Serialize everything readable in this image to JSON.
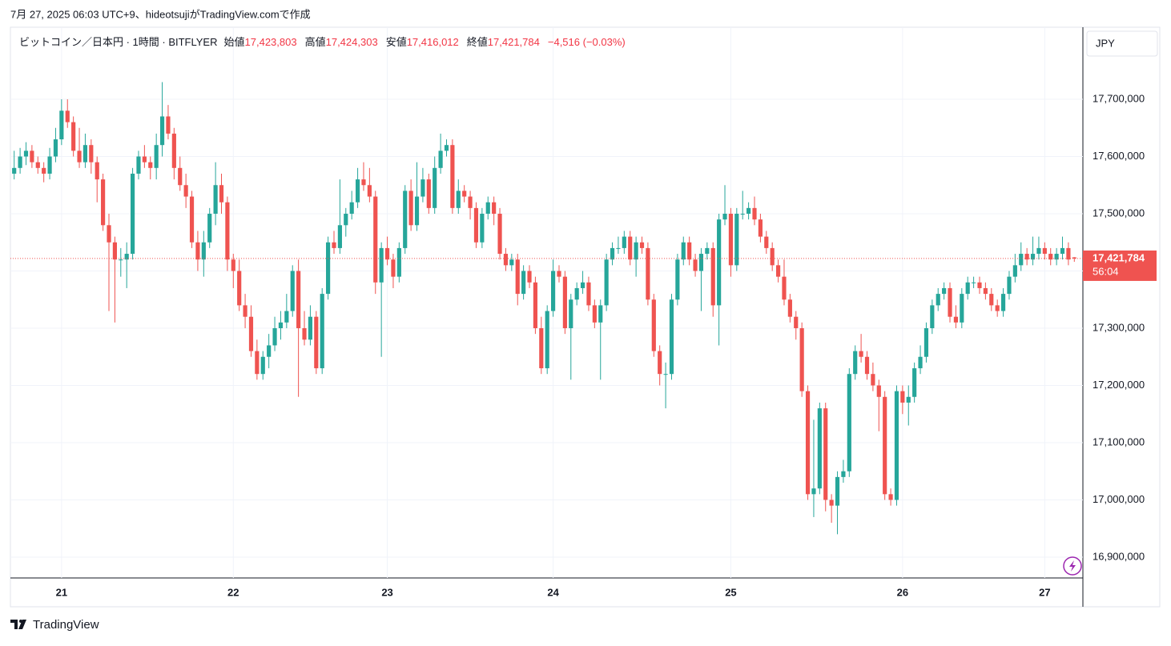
{
  "header": {
    "caption": "7月 27, 2025 06:03 UTC+9、hideotsujiがTradingView.comで作成",
    "logo": "TradingView"
  },
  "chart_data": {
    "type": "candlestick",
    "title": "ビットコイン／日本円 · 1時間 · BITFLYER",
    "legend_fields": [
      {
        "name": "始値",
        "text": "17,423,803"
      },
      {
        "name": "高値",
        "text": "17,424,303"
      },
      {
        "name": "安値",
        "text": "17,416,012"
      },
      {
        "name": "終値",
        "text": "17,421,784"
      }
    ],
    "change": "−4,516 (−0.03%)",
    "currency": "JPY",
    "last_price": {
      "value": 17421784,
      "label": "17,421,784"
    },
    "countdown": "56:04",
    "up_color": "#26a69a",
    "down_color": "#ef5350",
    "grid": true,
    "ylim": [
      16863600,
      17825900
    ],
    "yticks": [
      {
        "value": 16900000,
        "label": "16,900,000"
      },
      {
        "value": 17000000,
        "label": "17,000,000"
      },
      {
        "value": 17100000,
        "label": "17,100,000"
      },
      {
        "value": 17200000,
        "label": "17,200,000"
      },
      {
        "value": 17300000,
        "label": "17,300,000"
      },
      {
        "value": 17400000,
        "label": "17,400,000"
      },
      {
        "value": 17500000,
        "label": "17,500,000"
      },
      {
        "value": 17600000,
        "label": "17,600,000"
      },
      {
        "value": 17700000,
        "label": "17,700,000"
      }
    ],
    "categories": [
      null,
      null,
      null,
      null,
      null,
      null,
      null,
      null,
      "21",
      null,
      null,
      null,
      null,
      null,
      null,
      null,
      null,
      null,
      null,
      null,
      null,
      null,
      null,
      null,
      null,
      null,
      null,
      null,
      null,
      null,
      null,
      null,
      null,
      null,
      null,
      null,
      null,
      "22",
      null,
      null,
      null,
      null,
      null,
      null,
      null,
      null,
      null,
      null,
      null,
      null,
      null,
      null,
      null,
      null,
      null,
      null,
      null,
      null,
      null,
      null,
      null,
      null,
      null,
      "23",
      null,
      null,
      null,
      null,
      null,
      null,
      null,
      null,
      null,
      null,
      null,
      null,
      null,
      null,
      null,
      null,
      null,
      null,
      null,
      null,
      null,
      null,
      null,
      null,
      null,
      null,
      null,
      "24",
      null,
      null,
      null,
      null,
      null,
      null,
      null,
      null,
      null,
      null,
      null,
      null,
      null,
      null,
      null,
      null,
      null,
      null,
      null,
      null,
      null,
      null,
      null,
      null,
      null,
      null,
      null,
      null,
      null,
      "25",
      null,
      null,
      null,
      null,
      null,
      null,
      null,
      null,
      null,
      null,
      null,
      null,
      null,
      null,
      null,
      null,
      null,
      null,
      null,
      null,
      null,
      null,
      null,
      null,
      null,
      null,
      null,
      null,
      "26",
      null,
      null,
      null,
      null,
      null,
      null,
      null,
      null,
      null,
      null,
      null,
      null,
      null,
      null,
      null,
      null,
      null,
      null,
      null,
      null,
      null,
      null,
      null,
      "27",
      null,
      null,
      null,
      null,
      null,
      null
    ],
    "ohlc": [
      [
        17570000,
        17610000,
        17560000,
        17580000
      ],
      [
        17580000,
        17615000,
        17570000,
        17600000
      ],
      [
        17600000,
        17625000,
        17585000,
        17610000
      ],
      [
        17610000,
        17620000,
        17580000,
        17590000
      ],
      [
        17590000,
        17600000,
        17570000,
        17580000
      ],
      [
        17580000,
        17590000,
        17555000,
        17570000
      ],
      [
        17570000,
        17615000,
        17560000,
        17600000
      ],
      [
        17600000,
        17650000,
        17590000,
        17630000
      ],
      [
        17630000,
        17700000,
        17620000,
        17680000
      ],
      [
        17680000,
        17700000,
        17650000,
        17660000
      ],
      [
        17660000,
        17670000,
        17600000,
        17610000
      ],
      [
        17610000,
        17650000,
        17580000,
        17590000
      ],
      [
        17590000,
        17640000,
        17580000,
        17620000
      ],
      [
        17620000,
        17630000,
        17570000,
        17590000
      ],
      [
        17590000,
        17600000,
        17520000,
        17560000
      ],
      [
        17560000,
        17570000,
        17470000,
        17480000
      ],
      [
        17480000,
        17500000,
        17330000,
        17450000
      ],
      [
        17450000,
        17460000,
        17310000,
        17420000
      ],
      [
        17420000,
        17440000,
        17390000,
        17420000
      ],
      [
        17420000,
        17450000,
        17370000,
        17430000
      ],
      [
        17430000,
        17580000,
        17420000,
        17570000
      ],
      [
        17570000,
        17610000,
        17560000,
        17600000
      ],
      [
        17600000,
        17620000,
        17580000,
        17590000
      ],
      [
        17590000,
        17600000,
        17560000,
        17580000
      ],
      [
        17580000,
        17640000,
        17560000,
        17620000
      ],
      [
        17620000,
        17730000,
        17600000,
        17670000
      ],
      [
        17670000,
        17690000,
        17630000,
        17640000
      ],
      [
        17640000,
        17650000,
        17560000,
        17580000
      ],
      [
        17580000,
        17600000,
        17540000,
        17550000
      ],
      [
        17550000,
        17570000,
        17510000,
        17530000
      ],
      [
        17530000,
        17540000,
        17440000,
        17450000
      ],
      [
        17450000,
        17470000,
        17400000,
        17420000
      ],
      [
        17420000,
        17470000,
        17390000,
        17450000
      ],
      [
        17450000,
        17510000,
        17440000,
        17500000
      ],
      [
        17500000,
        17590000,
        17480000,
        17550000
      ],
      [
        17550000,
        17570000,
        17500000,
        17520000
      ],
      [
        17520000,
        17530000,
        17400000,
        17420000
      ],
      [
        17420000,
        17430000,
        17370000,
        17400000
      ],
      [
        17400000,
        17420000,
        17330000,
        17340000
      ],
      [
        17340000,
        17360000,
        17300000,
        17320000
      ],
      [
        17320000,
        17340000,
        17250000,
        17260000
      ],
      [
        17260000,
        17280000,
        17210000,
        17220000
      ],
      [
        17220000,
        17260000,
        17210000,
        17250000
      ],
      [
        17250000,
        17290000,
        17230000,
        17270000
      ],
      [
        17270000,
        17320000,
        17260000,
        17300000
      ],
      [
        17300000,
        17330000,
        17280000,
        17310000
      ],
      [
        17310000,
        17360000,
        17300000,
        17330000
      ],
      [
        17330000,
        17410000,
        17320000,
        17400000
      ],
      [
        17400000,
        17420000,
        17180000,
        17300000
      ],
      [
        17300000,
        17330000,
        17270000,
        17280000
      ],
      [
        17280000,
        17340000,
        17270000,
        17320000
      ],
      [
        17320000,
        17330000,
        17220000,
        17230000
      ],
      [
        17230000,
        17370000,
        17220000,
        17360000
      ],
      [
        17360000,
        17460000,
        17350000,
        17450000
      ],
      [
        17450000,
        17470000,
        17430000,
        17440000
      ],
      [
        17440000,
        17560000,
        17430000,
        17480000
      ],
      [
        17480000,
        17510000,
        17460000,
        17500000
      ],
      [
        17500000,
        17540000,
        17490000,
        17520000
      ],
      [
        17520000,
        17580000,
        17510000,
        17560000
      ],
      [
        17560000,
        17590000,
        17540000,
        17550000
      ],
      [
        17550000,
        17580000,
        17520000,
        17530000
      ],
      [
        17530000,
        17540000,
        17360000,
        17380000
      ],
      [
        17380000,
        17450000,
        17250000,
        17440000
      ],
      [
        17440000,
        17460000,
        17410000,
        17420000
      ],
      [
        17420000,
        17430000,
        17370000,
        17390000
      ],
      [
        17390000,
        17450000,
        17380000,
        17440000
      ],
      [
        17440000,
        17550000,
        17430000,
        17540000
      ],
      [
        17540000,
        17560000,
        17470000,
        17480000
      ],
      [
        17480000,
        17590000,
        17470000,
        17530000
      ],
      [
        17530000,
        17580000,
        17520000,
        17560000
      ],
      [
        17560000,
        17570000,
        17500000,
        17510000
      ],
      [
        17510000,
        17600000,
        17500000,
        17580000
      ],
      [
        17580000,
        17640000,
        17570000,
        17610000
      ],
      [
        17610000,
        17630000,
        17600000,
        17620000
      ],
      [
        17620000,
        17630000,
        17500000,
        17510000
      ],
      [
        17510000,
        17560000,
        17500000,
        17540000
      ],
      [
        17540000,
        17550000,
        17520000,
        17530000
      ],
      [
        17530000,
        17540000,
        17490000,
        17510000
      ],
      [
        17510000,
        17520000,
        17440000,
        17450000
      ],
      [
        17450000,
        17510000,
        17440000,
        17500000
      ],
      [
        17500000,
        17530000,
        17490000,
        17520000
      ],
      [
        17520000,
        17530000,
        17480000,
        17500000
      ],
      [
        17500000,
        17510000,
        17420000,
        17430000
      ],
      [
        17430000,
        17440000,
        17400000,
        17410000
      ],
      [
        17410000,
        17430000,
        17400000,
        17420000
      ],
      [
        17420000,
        17430000,
        17340000,
        17360000
      ],
      [
        17360000,
        17410000,
        17350000,
        17400000
      ],
      [
        17400000,
        17410000,
        17370000,
        17380000
      ],
      [
        17380000,
        17390000,
        17290000,
        17300000
      ],
      [
        17300000,
        17320000,
        17220000,
        17230000
      ],
      [
        17230000,
        17340000,
        17220000,
        17330000
      ],
      [
        17330000,
        17420000,
        17320000,
        17400000
      ],
      [
        17400000,
        17410000,
        17380000,
        17390000
      ],
      [
        17390000,
        17400000,
        17290000,
        17300000
      ],
      [
        17300000,
        17360000,
        17210000,
        17350000
      ],
      [
        17350000,
        17380000,
        17340000,
        17370000
      ],
      [
        17370000,
        17400000,
        17360000,
        17380000
      ],
      [
        17380000,
        17390000,
        17330000,
        17340000
      ],
      [
        17340000,
        17350000,
        17300000,
        17310000
      ],
      [
        17310000,
        17350000,
        17210000,
        17340000
      ],
      [
        17340000,
        17430000,
        17330000,
        17420000
      ],
      [
        17420000,
        17450000,
        17410000,
        17440000
      ],
      [
        17440000,
        17460000,
        17430000,
        17440000
      ],
      [
        17440000,
        17470000,
        17430000,
        17460000
      ],
      [
        17460000,
        17470000,
        17410000,
        17420000
      ],
      [
        17420000,
        17460000,
        17390000,
        17450000
      ],
      [
        17450000,
        17460000,
        17430000,
        17440000
      ],
      [
        17440000,
        17450000,
        17340000,
        17350000
      ],
      [
        17350000,
        17360000,
        17250000,
        17260000
      ],
      [
        17260000,
        17270000,
        17200000,
        17220000
      ],
      [
        17220000,
        17240000,
        17160000,
        17220000
      ],
      [
        17220000,
        17360000,
        17210000,
        17350000
      ],
      [
        17350000,
        17430000,
        17340000,
        17420000
      ],
      [
        17420000,
        17460000,
        17410000,
        17450000
      ],
      [
        17450000,
        17460000,
        17410000,
        17420000
      ],
      [
        17420000,
        17430000,
        17390000,
        17400000
      ],
      [
        17400000,
        17440000,
        17330000,
        17430000
      ],
      [
        17430000,
        17450000,
        17420000,
        17440000
      ],
      [
        17440000,
        17450000,
        17320000,
        17340000
      ],
      [
        17340000,
        17500000,
        17270000,
        17490000
      ],
      [
        17490000,
        17550000,
        17480000,
        17500000
      ],
      [
        17500000,
        17510000,
        17390000,
        17410000
      ],
      [
        17410000,
        17510000,
        17400000,
        17500000
      ],
      [
        17500000,
        17540000,
        17490000,
        17500000
      ],
      [
        17500000,
        17520000,
        17490000,
        17510000
      ],
      [
        17510000,
        17530000,
        17480000,
        17490000
      ],
      [
        17490000,
        17500000,
        17450000,
        17460000
      ],
      [
        17460000,
        17470000,
        17430000,
        17440000
      ],
      [
        17440000,
        17450000,
        17400000,
        17410000
      ],
      [
        17410000,
        17420000,
        17380000,
        17390000
      ],
      [
        17390000,
        17420000,
        17340000,
        17350000
      ],
      [
        17350000,
        17360000,
        17310000,
        17320000
      ],
      [
        17320000,
        17330000,
        17280000,
        17300000
      ],
      [
        17300000,
        17310000,
        17180000,
        17190000
      ],
      [
        17190000,
        17200000,
        17000000,
        17010000
      ],
      [
        17010000,
        17140000,
        16970000,
        17020000
      ],
      [
        17020000,
        17170000,
        17010000,
        17160000
      ],
      [
        17160000,
        17170000,
        16980000,
        17000000
      ],
      [
        17000000,
        17010000,
        16960000,
        16990000
      ],
      [
        16990000,
        17050000,
        16940000,
        17040000
      ],
      [
        17040000,
        17070000,
        17030000,
        17050000
      ],
      [
        17050000,
        17230000,
        17040000,
        17220000
      ],
      [
        17220000,
        17270000,
        17210000,
        17260000
      ],
      [
        17260000,
        17290000,
        17240000,
        17250000
      ],
      [
        17250000,
        17260000,
        17210000,
        17220000
      ],
      [
        17220000,
        17240000,
        17190000,
        17200000
      ],
      [
        17200000,
        17210000,
        17120000,
        17180000
      ],
      [
        17180000,
        17190000,
        17000000,
        17010000
      ],
      [
        17010000,
        17020000,
        16990000,
        17000000
      ],
      [
        17000000,
        17200000,
        16990000,
        17190000
      ],
      [
        17190000,
        17200000,
        17150000,
        17170000
      ],
      [
        17170000,
        17200000,
        17130000,
        17180000
      ],
      [
        17180000,
        17240000,
        17170000,
        17230000
      ],
      [
        17230000,
        17270000,
        17220000,
        17250000
      ],
      [
        17250000,
        17310000,
        17240000,
        17300000
      ],
      [
        17300000,
        17350000,
        17290000,
        17340000
      ],
      [
        17340000,
        17370000,
        17330000,
        17360000
      ],
      [
        17360000,
        17380000,
        17350000,
        17370000
      ],
      [
        17370000,
        17380000,
        17310000,
        17320000
      ],
      [
        17320000,
        17340000,
        17300000,
        17310000
      ],
      [
        17310000,
        17370000,
        17300000,
        17360000
      ],
      [
        17360000,
        17390000,
        17350000,
        17380000
      ],
      [
        17380000,
        17390000,
        17370000,
        17380000
      ],
      [
        17380000,
        17390000,
        17360000,
        17370000
      ],
      [
        17370000,
        17380000,
        17350000,
        17360000
      ],
      [
        17360000,
        17370000,
        17330000,
        17340000
      ],
      [
        17340000,
        17350000,
        17320000,
        17330000
      ],
      [
        17330000,
        17370000,
        17320000,
        17360000
      ],
      [
        17360000,
        17400000,
        17350000,
        17390000
      ],
      [
        17390000,
        17430000,
        17380000,
        17410000
      ],
      [
        17410000,
        17450000,
        17400000,
        17430000
      ],
      [
        17430000,
        17440000,
        17410000,
        17420000
      ],
      [
        17420000,
        17460000,
        17410000,
        17430000
      ],
      [
        17430000,
        17460000,
        17420000,
        17440000
      ],
      [
        17440000,
        17450000,
        17420000,
        17430000
      ],
      [
        17430000,
        17440000,
        17410000,
        17420000
      ],
      [
        17420000,
        17440000,
        17410000,
        17430000
      ],
      [
        17430000,
        17460000,
        17420000,
        17440000
      ],
      [
        17440000,
        17450000,
        17410000,
        17420000
      ],
      [
        17423803,
        17424303,
        17416012,
        17421784
      ]
    ]
  }
}
